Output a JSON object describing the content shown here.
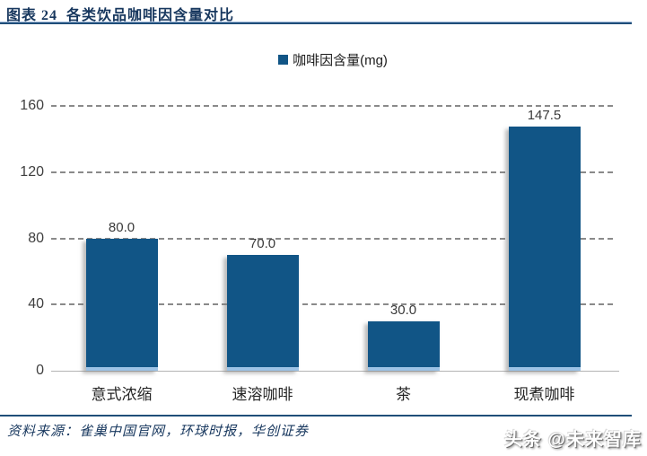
{
  "header": {
    "title": "图表 24  各类饮品咖啡因含量对比"
  },
  "legend": {
    "label": "咖啡因含量(mg)"
  },
  "chart_data": {
    "type": "bar",
    "figure_label": "图表 24",
    "title": "各类饮品咖啡因含量对比",
    "categories": [
      "意式浓缩",
      "速溶咖啡",
      "茶",
      "现煮咖啡"
    ],
    "series": [
      {
        "name": "咖啡因含量(mg)",
        "values": [
          80.0,
          70.0,
          30.0,
          147.5
        ]
      }
    ],
    "data_labels": [
      "80.0",
      "70.0",
      "30.0",
      "147.5"
    ],
    "xlabel": "",
    "ylabel": "",
    "ylim": [
      0,
      160
    ],
    "yticks": [
      0,
      40,
      80,
      120,
      160
    ],
    "grid": "horizontal-dashed",
    "legend_position": "top-center",
    "bar_color": "#115586",
    "bar_bottom_edge_color": "#9dc3e6"
  },
  "footer": {
    "source": "资料来源：雀巢中国官网，环球时报，华创证券",
    "watermark": "头条 @未来智库"
  },
  "colors": {
    "title_navy": "#17375e",
    "rule_blue": "#1f4e79",
    "grid_gray": "#8a8a8a",
    "axis_gray": "#b3b3b3",
    "label_gray": "#3f3f3f"
  }
}
